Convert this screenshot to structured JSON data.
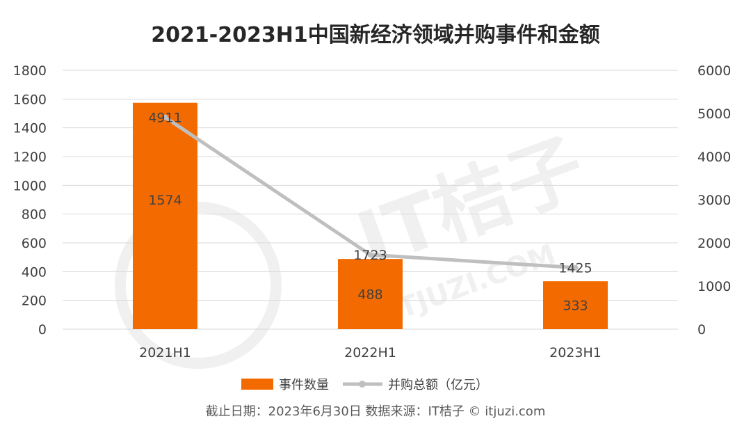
{
  "chart_data": {
    "type": "bar",
    "title": "2021-2023H1中国新经济领域并购事件和金额",
    "categories": [
      "2021H1",
      "2022H1",
      "2023H1"
    ],
    "series": [
      {
        "name": "事件数量",
        "kind": "bar",
        "axis": "left",
        "color": "#f36b00",
        "values": [
          1574,
          488,
          333
        ]
      },
      {
        "name": "并购总额（亿元）",
        "kind": "line",
        "axis": "right",
        "color": "#bfbfbf",
        "values": [
          4911,
          1723,
          1425
        ]
      }
    ],
    "left_axis": {
      "ylim": [
        0,
        1800
      ],
      "ticks": [
        "0",
        "200",
        "400",
        "600",
        "800",
        "1000",
        "1200",
        "1400",
        "1600",
        "1800"
      ]
    },
    "right_axis": {
      "ylim": [
        0,
        6000
      ],
      "ticks": [
        "0",
        "1000",
        "2000",
        "3000",
        "4000",
        "5000",
        "6000"
      ]
    },
    "grid": true,
    "legend_position": "bottom"
  },
  "footer": "截止日期：2023年6月30日    数据来源：IT桔子 © itjuzi.com",
  "watermark": {
    "brand": "IT桔子",
    "url": "ITJUZI.COM"
  }
}
